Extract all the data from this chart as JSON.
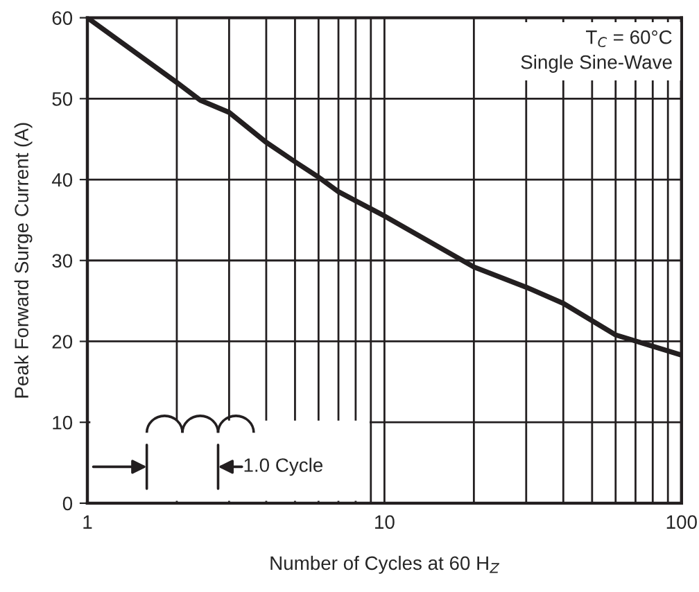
{
  "chart_data": {
    "type": "line",
    "xlabel": "Number of Cycles at 60 H$_{Z}$",
    "ylabel": "Peak Forward Surge Current (A)",
    "x": [
      1,
      2,
      2.4,
      3,
      4,
      5,
      6,
      7,
      10,
      20,
      30,
      40,
      60,
      80,
      100
    ],
    "series": [
      {
        "color": "#231f20",
        "values": [
          60,
          52,
          49.8,
          48.3,
          44.6,
          42.2,
          40.3,
          38.5,
          35.5,
          29.2,
          26.7,
          24.7,
          20.8,
          19.4,
          18.3
        ]
      }
    ],
    "log": "x",
    "xlim": [
      1,
      100
    ],
    "ylim": [
      0,
      60
    ],
    "xticks": [
      1,
      {
        "value": 2,
        "label": null
      },
      {
        "value": 3,
        "label": null
      },
      {
        "value": 4,
        "label": null
      },
      {
        "value": 5,
        "label": null
      },
      {
        "value": 6,
        "label": null
      },
      {
        "value": 7,
        "label": null
      },
      {
        "value": 8,
        "label": null
      },
      {
        "value": 9,
        "label": null
      },
      10,
      {
        "value": 20,
        "label": null
      },
      {
        "value": 30,
        "label": null
      },
      {
        "value": 40,
        "label": null
      },
      {
        "value": 50,
        "label": null
      },
      {
        "value": 60,
        "label": null
      },
      {
        "value": 70,
        "label": null
      },
      {
        "value": 80,
        "label": null
      },
      {
        "value": 90,
        "label": null
      },
      100
    ],
    "yticks": [
      0,
      10,
      20,
      30,
      40,
      50,
      60
    ],
    "grid": true,
    "line_style": "solid",
    "marker": "none",
    "legend": false,
    "annotations": [
      "T$_{C}$ = 60°C\nSingle Sine-Wave",
      "1.0 Cycle"
    ]
  }
}
